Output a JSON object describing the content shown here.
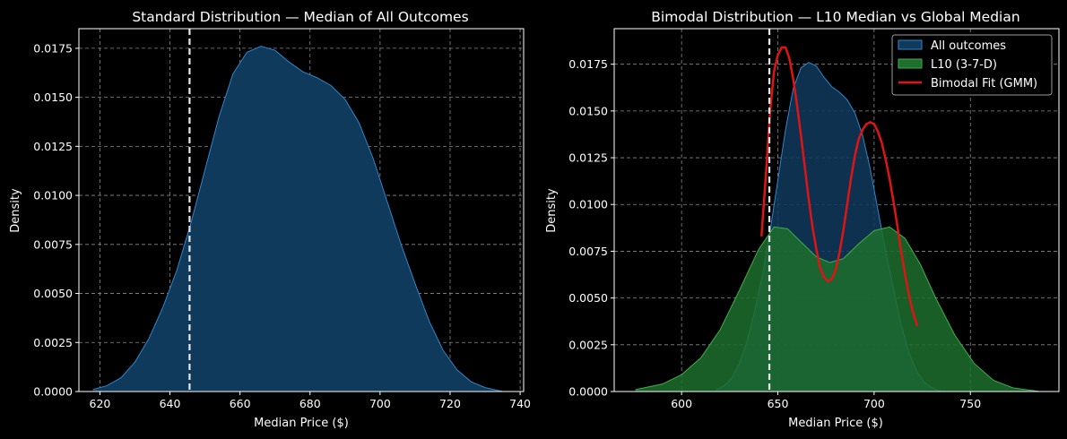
{
  "chart_data": [
    {
      "type": "area",
      "title": "Standard Distribution — Median of All Outcomes",
      "xlabel": "Median Price ($)",
      "ylabel": "Density",
      "xlim": [
        614,
        741
      ],
      "ylim": [
        0,
        0.0185
      ],
      "xticks": [
        620,
        640,
        660,
        680,
        700,
        720,
        740
      ],
      "yticks": [
        "0.0000",
        "0.0025",
        "0.0050",
        "0.0075",
        "0.0100",
        "0.0125",
        "0.0150",
        "0.0175"
      ],
      "grid": true,
      "reference_line": {
        "x": 645.6,
        "style": "dashed",
        "color": "#e8e8e8"
      },
      "series": [
        {
          "name": "All outcomes",
          "fill": "#0f3a5c",
          "line": "#2f86c8",
          "x": [
            618,
            622,
            626,
            630,
            634,
            638,
            642,
            646,
            650,
            654,
            658,
            662,
            666,
            670,
            674,
            678,
            682,
            686,
            690,
            694,
            698,
            702,
            706,
            710,
            714,
            718,
            722,
            726,
            730,
            735
          ],
          "y": [
            0.0001,
            0.0003,
            0.0007,
            0.0015,
            0.0027,
            0.0043,
            0.0062,
            0.0086,
            0.0113,
            0.014,
            0.0162,
            0.0173,
            0.0176,
            0.0174,
            0.0168,
            0.0163,
            0.016,
            0.0156,
            0.0149,
            0.0137,
            0.0119,
            0.0097,
            0.0075,
            0.0055,
            0.0036,
            0.0021,
            0.0011,
            0.0005,
            0.0002,
            0.0
          ]
        }
      ]
    },
    {
      "type": "area",
      "title": "Bimodal Distribution — L10 Median vs Global Median",
      "xlabel": "Median Price ($)",
      "ylabel": "Density",
      "xlim": [
        565,
        796
      ],
      "ylim": [
        0,
        0.0194
      ],
      "xticks": [
        600,
        650,
        700,
        750
      ],
      "yticks": [
        "0.0000",
        "0.0025",
        "0.0050",
        "0.0075",
        "0.0100",
        "0.0125",
        "0.0150",
        "0.0175"
      ],
      "grid": true,
      "legend_position": "top-right",
      "reference_line": {
        "x": 645.6,
        "style": "dashed",
        "color": "#e8e8e8"
      },
      "series": [
        {
          "name": "All outcomes",
          "kind": "area",
          "fill": "#0f3a5c",
          "line": "#2f86c8",
          "x": [
            618,
            622,
            626,
            630,
            634,
            638,
            642,
            646,
            650,
            654,
            658,
            662,
            666,
            670,
            674,
            678,
            682,
            686,
            690,
            694,
            698,
            702,
            706,
            710,
            714,
            718,
            722,
            726,
            730,
            735
          ],
          "y": [
            0.0001,
            0.0003,
            0.0007,
            0.0015,
            0.0027,
            0.0043,
            0.0062,
            0.0086,
            0.0113,
            0.014,
            0.0162,
            0.0173,
            0.0176,
            0.0174,
            0.0168,
            0.0163,
            0.016,
            0.0156,
            0.0149,
            0.0137,
            0.0119,
            0.0097,
            0.0075,
            0.0055,
            0.0036,
            0.0021,
            0.0011,
            0.0005,
            0.0002,
            0.0
          ]
        },
        {
          "name": "L10 (3-7-D)",
          "kind": "area",
          "fill": "#1e6e2e",
          "line": "#3fae4a",
          "x": [
            576,
            590,
            600,
            610,
            620,
            630,
            640,
            648,
            655,
            662,
            670,
            677,
            684,
            692,
            700,
            708,
            716,
            724,
            732,
            742,
            752,
            762,
            772,
            786
          ],
          "y": [
            0.0001,
            0.0004,
            0.0009,
            0.0018,
            0.0033,
            0.0054,
            0.0076,
            0.0088,
            0.0087,
            0.008,
            0.0072,
            0.0069,
            0.0071,
            0.0079,
            0.0086,
            0.0088,
            0.0082,
            0.0068,
            0.005,
            0.003,
            0.0015,
            0.0006,
            0.0002,
            0.0
          ]
        },
        {
          "name": "Bimodal Fit (GMM)",
          "kind": "line",
          "line": "#e01414",
          "x": [
            641.5,
            644,
            646,
            648,
            650,
            652,
            654,
            656,
            658,
            660,
            662,
            664,
            666,
            668,
            670,
            672,
            674,
            676,
            678,
            680,
            682,
            684,
            686,
            688,
            690,
            692,
            694,
            696,
            698,
            700,
            702,
            704,
            706,
            708,
            710,
            712,
            714,
            716,
            718,
            720,
            722.5
          ],
          "y": [
            0.0083,
            0.0119,
            0.015,
            0.0171,
            0.018,
            0.0184,
            0.0184,
            0.0178,
            0.0167,
            0.0153,
            0.0137,
            0.012,
            0.0103,
            0.0088,
            0.0076,
            0.0066,
            0.0061,
            0.0059,
            0.006,
            0.0065,
            0.0074,
            0.0086,
            0.01,
            0.0114,
            0.0126,
            0.0135,
            0.014,
            0.0143,
            0.0144,
            0.0143,
            0.0139,
            0.0133,
            0.0124,
            0.0114,
            0.0102,
            0.0089,
            0.0075,
            0.0063,
            0.0052,
            0.0043,
            0.0035
          ]
        }
      ]
    }
  ]
}
